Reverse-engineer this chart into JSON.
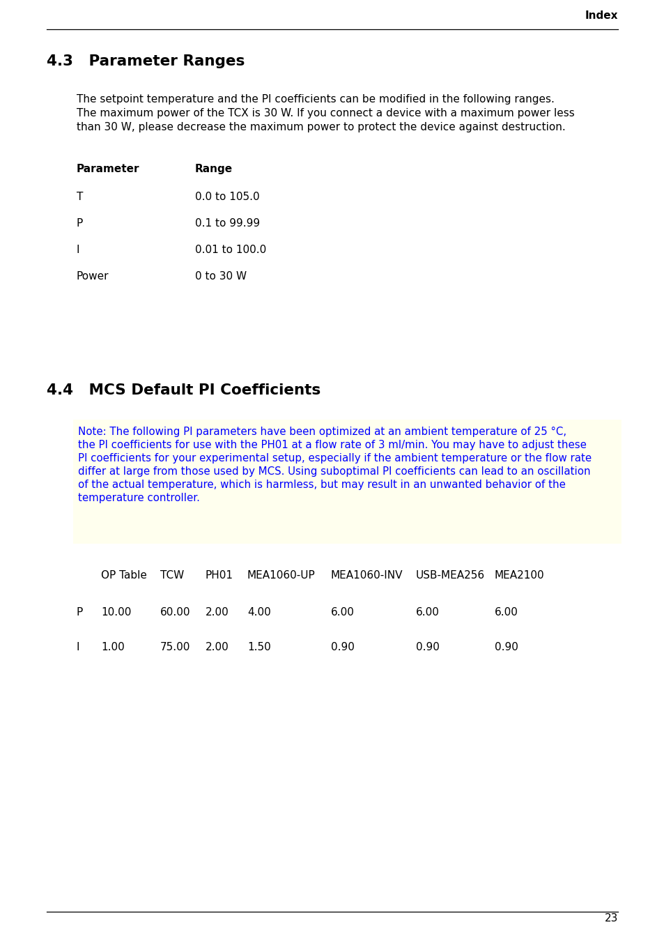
{
  "page_background": "#ffffff",
  "header_text": "Index",
  "footer_number": "23",
  "section_43_title": "4.3   Parameter Ranges",
  "section_43_body_lines": [
    "The setpoint temperature and the PI coefficients can be modified in the following ranges.",
    "The maximum power of the TCX is 30 W. If you connect a device with a maximum power less",
    "than 30 W, please decrease the maximum power to protect the device against destruction."
  ],
  "param_table_header": [
    "Parameter",
    "Range"
  ],
  "param_table_rows": [
    [
      "T",
      "0.0 to 105.0"
    ],
    [
      "P",
      "0.1 to 99.99"
    ],
    [
      "I",
      "0.01 to 100.0"
    ],
    [
      "Power",
      "0 to 30 W"
    ]
  ],
  "section_44_title": "4.4   MCS Default PI Coefficients",
  "note_lines": [
    "Note: The following PI parameters have been optimized at an ambient temperature of 25 °C,",
    "the PI coefficients for use with the PH01 at a flow rate of 3 ml/min. You may have to adjust these",
    "PI coefficients for your experimental setup, especially if the ambient temperature or the flow rate",
    "differ at large from those used by MCS. Using suboptimal PI coefficients can lead to an oscillation",
    "of the actual temperature, which is harmless, but may result in an unwanted behavior of the",
    "temperature controller."
  ],
  "note_bg_color": "#ffffee",
  "note_text_color": "#0000ff",
  "pi_table_headers": [
    "",
    "OP Table",
    "TCW",
    "PH01",
    "MEA1060-UP",
    "MEA1060-INV",
    "USB-MEA256",
    "MEA2100"
  ],
  "pi_table_rows": [
    [
      "P",
      "10.00",
      "60.00",
      "2.00",
      "4.00",
      "6.00",
      "6.00",
      "6.00"
    ],
    [
      "I",
      "1.00",
      "75.00",
      "2.00",
      "1.50",
      "0.90",
      "0.90",
      "0.90"
    ]
  ],
  "body_font_size": 11.0,
  "section_title_font_size": 15.5,
  "header_font_size": 11.0,
  "table_font_size": 11.0,
  "note_font_size": 10.8
}
